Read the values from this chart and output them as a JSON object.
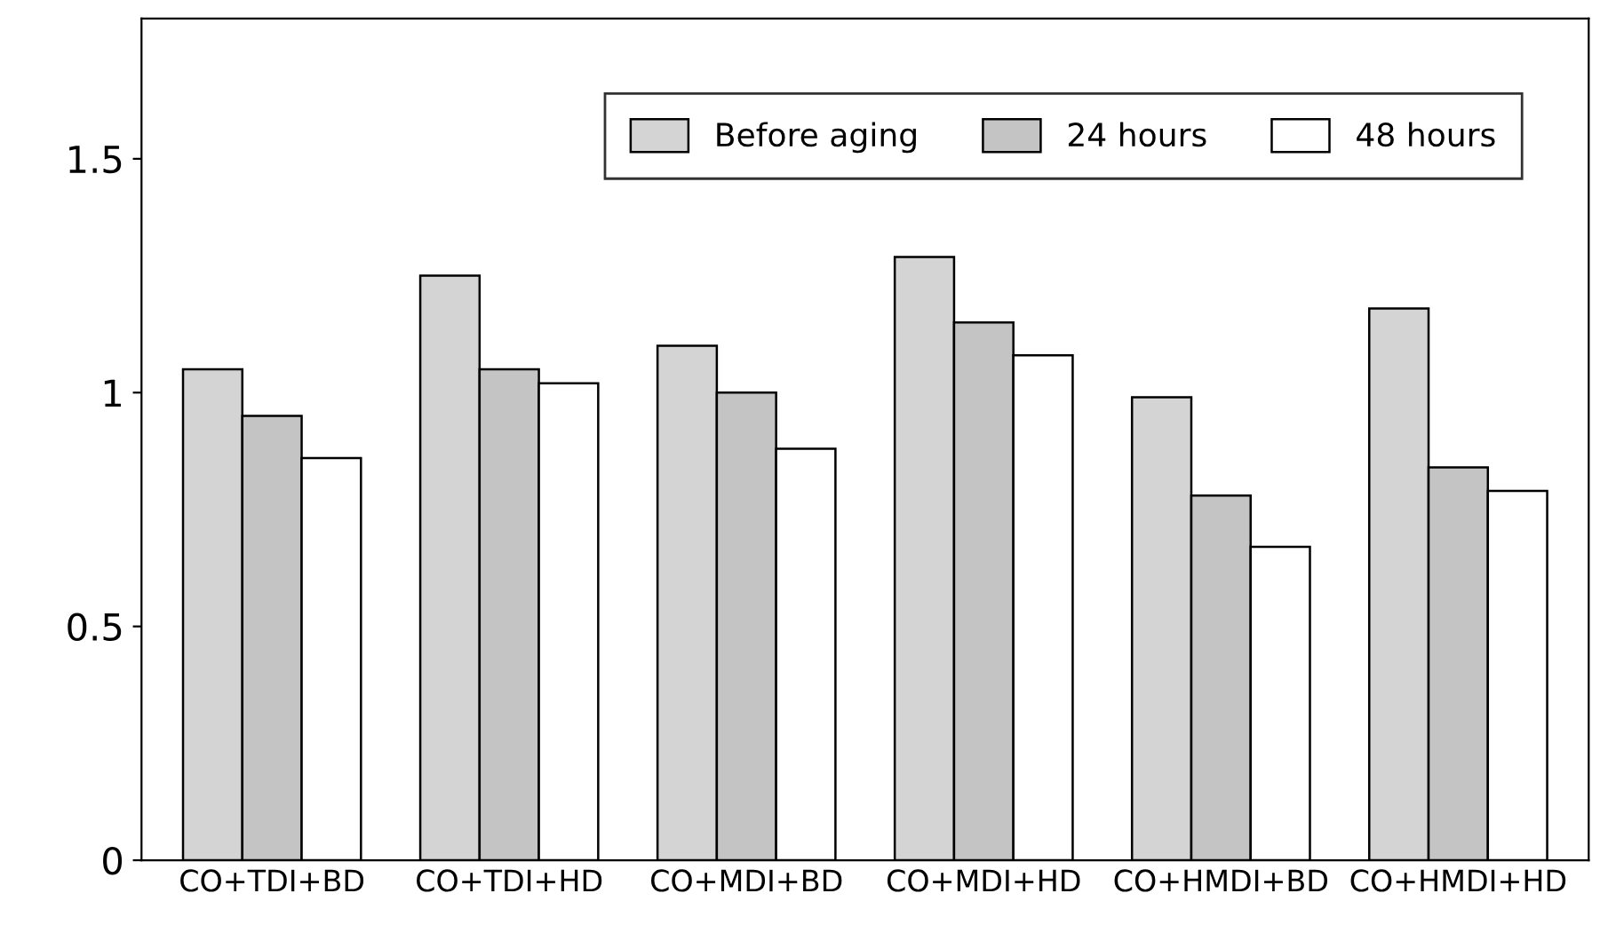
{
  "chart_data": {
    "type": "bar",
    "categories": [
      "CO+TDI+BD",
      "CO+TDI+HD",
      "CO+MDI+BD",
      "CO+MDI+HD",
      "CO+HMDI+BD",
      "CO+HMDI+HD"
    ],
    "series": [
      {
        "name": "Before aging",
        "color": "#d4d4d4",
        "values": [
          1.05,
          1.25,
          1.1,
          1.29,
          0.99,
          1.18
        ]
      },
      {
        "name": "24 hours",
        "color": "#c4c4c4",
        "values": [
          0.95,
          1.05,
          1.0,
          1.15,
          0.78,
          0.84
        ]
      },
      {
        "name": "48 hours",
        "color": "#ffffff",
        "values": [
          0.86,
          1.02,
          0.88,
          1.08,
          0.67,
          0.79
        ]
      }
    ],
    "ylim": [
      0,
      1.8
    ],
    "yticks": [
      0,
      0.5,
      1,
      1.5
    ],
    "grid": false,
    "legend": "top right"
  }
}
